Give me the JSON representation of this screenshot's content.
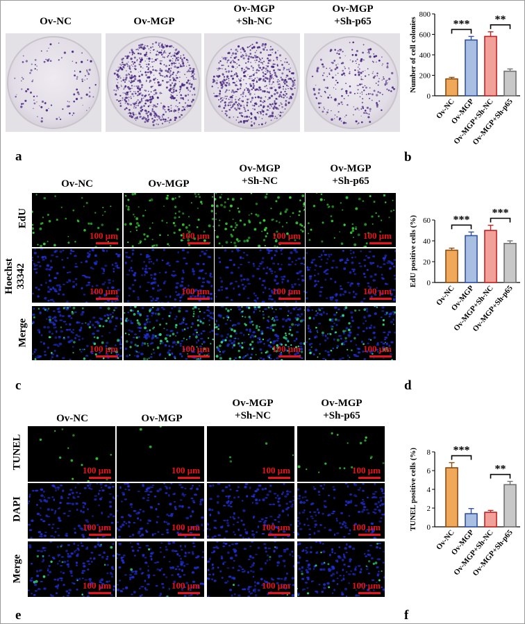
{
  "groups": [
    "Ov-NC",
    "Ov-MGP",
    "Ov-MGP\n+Sh-NC",
    "Ov-MGP\n+Sh-p65"
  ],
  "group_lines": [
    [
      "Ov-NC"
    ],
    [
      "Ov-MGP"
    ],
    [
      "Ov-MGP",
      "+Sh-NC"
    ],
    [
      "Ov-MGP",
      "+Sh-p65"
    ]
  ],
  "scale_label": "100 μm",
  "panels": {
    "a": "a",
    "b": "b",
    "c": "c",
    "d": "d",
    "e": "e",
    "f": "f"
  },
  "edu_rows": [
    "EdU",
    "Hoechst\n33342",
    "Merge"
  ],
  "tunel_rows": [
    "TUNEL",
    "DAPI",
    "Merge"
  ],
  "colors": {
    "ov_nc": "#f0a95a",
    "ov_mgp": "#a9bfe2",
    "ov_mgp_shnc": "#f2a09a",
    "ov_mgp_shp65": "#c8c8c8",
    "edge_ov_nc": "#8a4a10",
    "edge_ov_mgp": "#3050a0",
    "edge_ov_mgp_shnc": "#c02020",
    "edge_ov_mgp_shp65": "#707070",
    "scale_bar": "#e8131b"
  },
  "chart_data": [
    {
      "type": "bar",
      "ylabel": "Number of cell colonies",
      "categories": [
        "Ov-NC",
        "Ov-MGP",
        "Ov-MGP+Sh-NC",
        "Ov-MGP+Sh-p65"
      ],
      "values": [
        165,
        545,
        580,
        240
      ],
      "errors": [
        15,
        35,
        45,
        22
      ],
      "ylim": [
        0,
        800
      ],
      "yticks": [
        0,
        200,
        400,
        600,
        800
      ],
      "significance": [
        {
          "from": 0,
          "to": 1,
          "label": "***"
        },
        {
          "from": 2,
          "to": 3,
          "label": "**"
        }
      ]
    },
    {
      "type": "bar",
      "ylabel": "EdU positive cells (%)",
      "categories": [
        "Ov-NC",
        "Ov-MGP",
        "Ov-MGP+Sh-NC",
        "Ov-MGP+Sh-p65"
      ],
      "values": [
        31,
        45,
        50,
        37.5
      ],
      "errors": [
        2,
        3.5,
        5,
        2.5
      ],
      "ylim": [
        0,
        60
      ],
      "yticks": [
        0,
        20,
        40,
        60
      ],
      "significance": [
        {
          "from": 0,
          "to": 1,
          "label": "***"
        },
        {
          "from": 2,
          "to": 3,
          "label": "***"
        }
      ]
    },
    {
      "type": "bar",
      "ylabel": "TUNEL positive cells (%)",
      "categories": [
        "Ov-NC",
        "Ov-MGP",
        "Ov-MGP+Sh-NC",
        "Ov-MGP+Sh-p65"
      ],
      "values": [
        6.3,
        1.4,
        1.55,
        4.5
      ],
      "errors": [
        0.55,
        0.55,
        0.2,
        0.35
      ],
      "ylim": [
        0,
        8
      ],
      "yticks": [
        0,
        2,
        4,
        6,
        8
      ],
      "significance": [
        {
          "from": 0,
          "to": 1,
          "label": "***"
        },
        {
          "from": 2,
          "to": 3,
          "label": "**"
        }
      ]
    }
  ]
}
